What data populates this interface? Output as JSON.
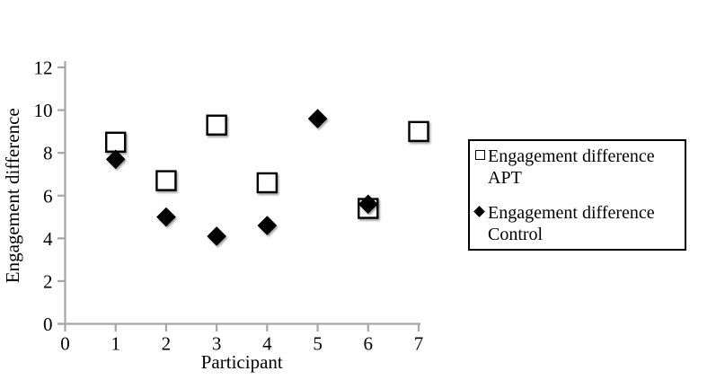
{
  "figure": {
    "background": "#ffffff",
    "text_color": "#000000",
    "axis_color": "#a6a6a6"
  },
  "chart_data": {
    "type": "scatter",
    "title": "",
    "xlabel": "Participant",
    "ylabel": "Engagement difference",
    "xlim": [
      0,
      7
    ],
    "ylim": [
      0,
      12
    ],
    "xticks": [
      0,
      1,
      2,
      3,
      4,
      5,
      6,
      7
    ],
    "yticks": [
      0,
      2,
      4,
      6,
      8,
      10,
      12
    ],
    "grid": false,
    "legend_position": "right-outside",
    "series": [
      {
        "name": "Engagement difference APT",
        "marker": "open-square",
        "marker_fill": "#ffffff",
        "marker_stroke": "#000000",
        "points": [
          {
            "x": 1,
            "y": 8.5
          },
          {
            "x": 2,
            "y": 6.7
          },
          {
            "x": 3,
            "y": 9.3
          },
          {
            "x": 4,
            "y": 6.6
          },
          {
            "x": 6,
            "y": 5.4
          },
          {
            "x": 7,
            "y": 9.0
          }
        ]
      },
      {
        "name": "Engagement difference Control",
        "marker": "filled-diamond",
        "marker_fill": "#000000",
        "marker_stroke": "#000000",
        "points": [
          {
            "x": 1,
            "y": 7.7
          },
          {
            "x": 2,
            "y": 5.0
          },
          {
            "x": 3,
            "y": 4.1
          },
          {
            "x": 4,
            "y": 4.6
          },
          {
            "x": 5,
            "y": 9.6
          },
          {
            "x": 6,
            "y": 5.6
          }
        ]
      }
    ],
    "legend": {
      "entries": [
        {
          "marker": "open-square",
          "label": "Engagement difference\nAPT"
        },
        {
          "marker": "filled-diamond",
          "label": "Engagement difference\nControl"
        }
      ]
    }
  }
}
